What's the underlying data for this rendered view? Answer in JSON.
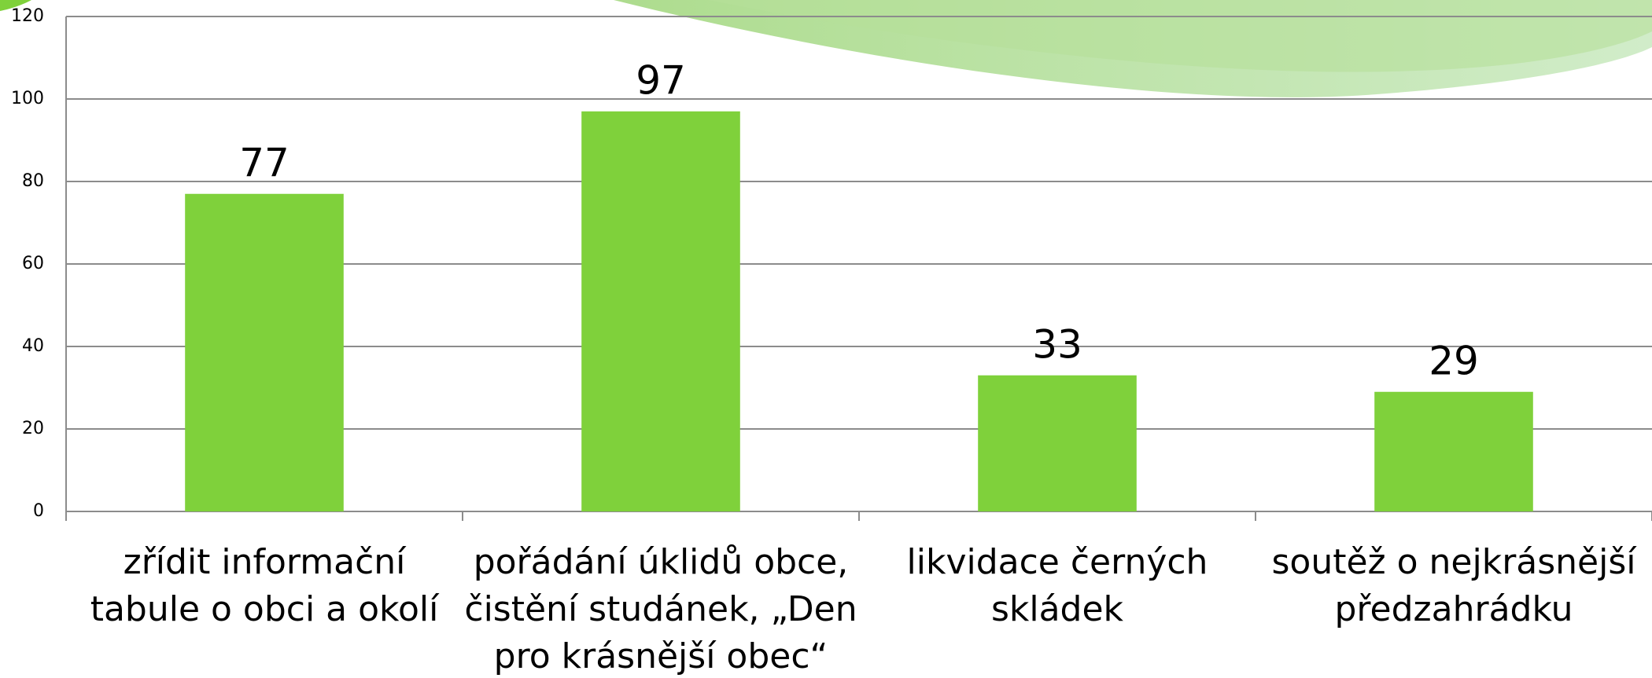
{
  "chart_data": {
    "type": "bar",
    "categories": [
      "zřídit informační tabule o obci a okolí",
      "pořádání úklidů obce, čistění studánek, „Den pro krásnější obec“",
      "likvidace černých skládek",
      "soutěž o nejkrásnější předzahrádku"
    ],
    "values": [
      77,
      97,
      33,
      29
    ],
    "color": "#7fd13b",
    "ylim": [
      0,
      120
    ],
    "yticks": [
      0,
      20,
      40,
      60,
      80,
      100,
      120
    ],
    "grid": true
  }
}
